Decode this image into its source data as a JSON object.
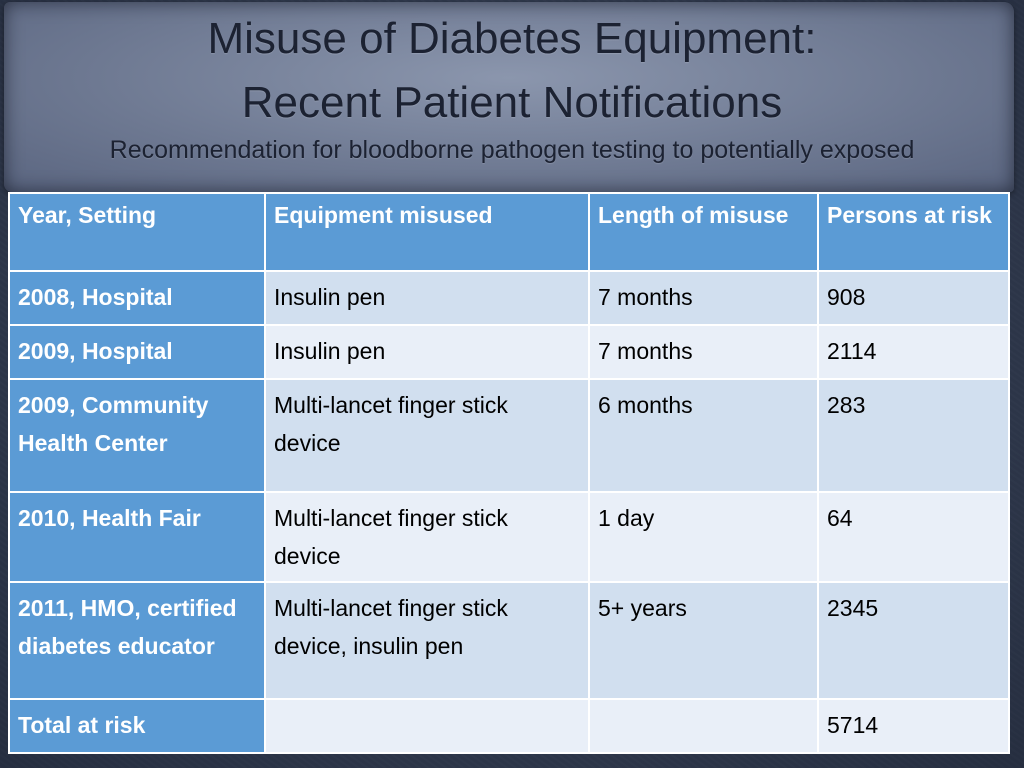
{
  "slide": {
    "title_line1": "Misuse of Diabetes Equipment:",
    "title_line2": "Recent Patient Notifications",
    "subtitle": "Recommendation for bloodborne pathogen testing to potentially exposed"
  },
  "table": {
    "headers": [
      "Year, Setting",
      "Equipment misused",
      "Length of misuse",
      "Persons at risk"
    ],
    "rows": [
      [
        "2008, Hospital",
        "Insulin pen",
        "7 months",
        "908"
      ],
      [
        "2009, Hospital",
        "Insulin pen",
        "7 months",
        "2114"
      ],
      [
        "2009, Community Health Center",
        "Multi-lancet finger stick device",
        "6 months",
        "283"
      ],
      [
        "2010, Health Fair",
        "Multi-lancet finger stick device",
        "1 day",
        "64"
      ],
      [
        "2011, HMO, certified diabetes educator",
        "Multi-lancet finger stick device, insulin pen",
        "5+ years",
        "2345"
      ],
      [
        "Total at risk",
        "",
        "",
        "5714"
      ]
    ]
  },
  "colors": {
    "header_blue": "#5b9bd5",
    "row_light": "#d1dfef",
    "row_lighter": "#e9eff8",
    "background": "#3c475e"
  }
}
